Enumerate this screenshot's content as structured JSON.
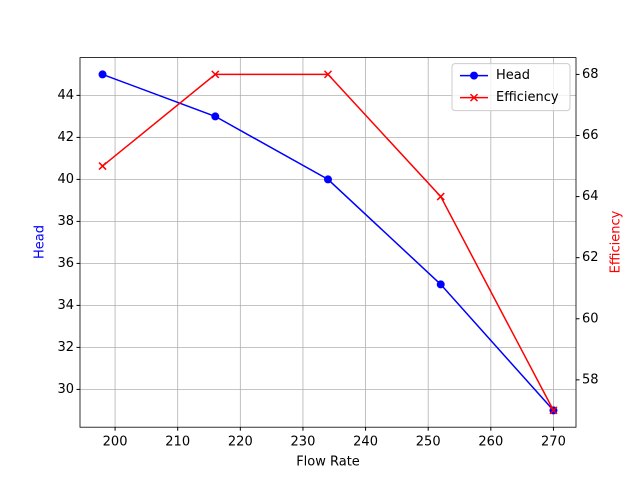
{
  "chart_data": {
    "type": "line",
    "x_label": "Flow Rate",
    "y_label": "Head",
    "y2_label": "Efficiency",
    "x": [
      198,
      216,
      234,
      252,
      270
    ],
    "series": [
      {
        "name": "Head",
        "color": "#0000ff",
        "marker": "circle",
        "values": [
          45,
          43,
          40,
          35,
          29
        ]
      },
      {
        "name": "Efficiency",
        "color": "#ff0000",
        "marker": "x",
        "axis": "y2",
        "values": [
          65,
          68,
          68,
          64,
          57
        ]
      }
    ],
    "xlim": [
      194.4,
      273.6
    ],
    "xticks": [
      200,
      210,
      220,
      230,
      240,
      250,
      260,
      270
    ],
    "ylim": [
      28.2,
      45.8
    ],
    "yticks": [
      30,
      32,
      34,
      36,
      38,
      40,
      42,
      44
    ],
    "y2lim": [
      56.45,
      68.55
    ],
    "y2ticks": [
      58,
      60,
      62,
      64,
      66,
      68
    ],
    "grid": true,
    "legend": "upper-right"
  }
}
